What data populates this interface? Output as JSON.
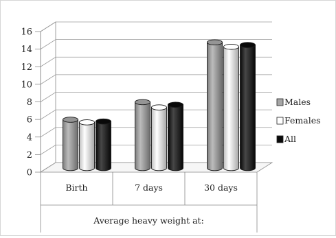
{
  "chart_data": {
    "type": "bar",
    "title": "",
    "xlabel": "Average heavy weight at:",
    "ylabel": "",
    "categories": [
      "Birth",
      "7 days",
      "30 days"
    ],
    "ylim": [
      0,
      16
    ],
    "y_ticks": [
      "0",
      "2",
      "4",
      "6",
      "8",
      "10",
      "12",
      "14",
      "16"
    ],
    "grid": true,
    "legend_position": "right",
    "series": [
      {
        "name": "Males",
        "values": [
          5.5,
          7.5,
          14.3
        ],
        "color": "#a6a6a6"
      },
      {
        "name": "Females",
        "values": [
          5.2,
          6.9,
          13.8
        ],
        "color": "#ffffff"
      },
      {
        "name": "All",
        "values": [
          5.3,
          7.2,
          14.0
        ],
        "color": "#0a0a0a"
      }
    ]
  }
}
